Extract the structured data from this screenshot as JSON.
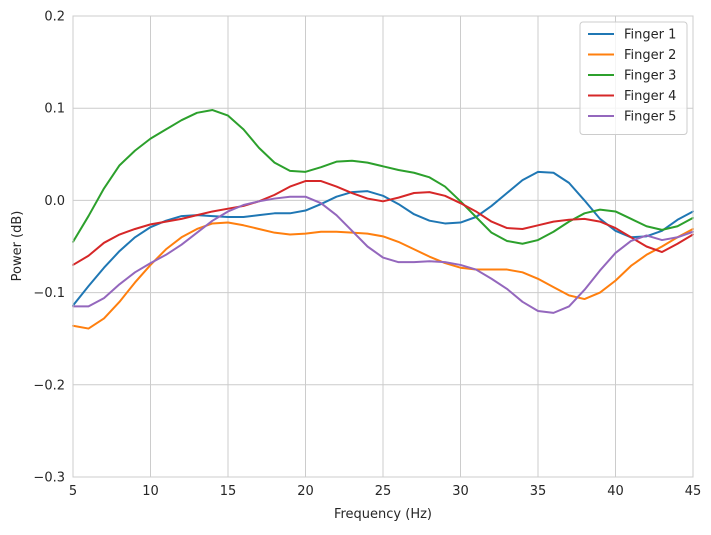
{
  "chart_data": {
    "type": "line",
    "xlabel": "Frequency (Hz)",
    "ylabel": "Power (dB)",
    "xlim": [
      5,
      45
    ],
    "ylim": [
      -0.3,
      0.2
    ],
    "grid": true,
    "legend_position": "top-right",
    "x_ticks": [
      5,
      10,
      15,
      20,
      25,
      30,
      35,
      40,
      45
    ],
    "x_tick_labels": [
      "5",
      "10",
      "15",
      "20",
      "25",
      "30",
      "35",
      "40",
      "45"
    ],
    "y_ticks": [
      -0.3,
      -0.2,
      -0.1,
      0.0,
      0.1,
      0.2
    ],
    "y_tick_labels": [
      "−0.3",
      "−0.2",
      "−0.1",
      "0.0",
      "0.1",
      "0.2"
    ],
    "x": [
      5,
      6,
      7,
      8,
      9,
      10,
      11,
      12,
      13,
      14,
      15,
      16,
      17,
      18,
      19,
      20,
      21,
      22,
      23,
      24,
      25,
      26,
      27,
      28,
      29,
      30,
      31,
      32,
      33,
      34,
      35,
      36,
      37,
      38,
      39,
      40,
      41,
      42,
      43,
      44,
      45
    ],
    "series": [
      {
        "name": "Finger 1",
        "color": "#1f77b4",
        "values": [
          -0.114,
          -0.093,
          -0.073,
          -0.055,
          -0.04,
          -0.029,
          -0.022,
          -0.017,
          -0.016,
          -0.017,
          -0.018,
          -0.018,
          -0.016,
          -0.014,
          -0.014,
          -0.011,
          -0.004,
          0.004,
          0.009,
          0.01,
          0.005,
          -0.004,
          -0.015,
          -0.022,
          -0.025,
          -0.024,
          -0.018,
          -0.006,
          0.008,
          0.022,
          0.031,
          0.03,
          0.019,
          0.0,
          -0.02,
          -0.033,
          -0.04,
          -0.039,
          -0.033,
          -0.021,
          -0.012
        ]
      },
      {
        "name": "Finger 2",
        "color": "#ff7f0e",
        "values": [
          -0.136,
          -0.139,
          -0.128,
          -0.11,
          -0.089,
          -0.07,
          -0.053,
          -0.04,
          -0.031,
          -0.025,
          -0.024,
          -0.027,
          -0.031,
          -0.035,
          -0.037,
          -0.036,
          -0.034,
          -0.034,
          -0.035,
          -0.036,
          -0.039,
          -0.045,
          -0.053,
          -0.061,
          -0.068,
          -0.073,
          -0.075,
          -0.075,
          -0.075,
          -0.078,
          -0.085,
          -0.094,
          -0.103,
          -0.107,
          -0.1,
          -0.087,
          -0.071,
          -0.059,
          -0.05,
          -0.04,
          -0.031
        ]
      },
      {
        "name": "Finger 3",
        "color": "#2ca02c",
        "values": [
          -0.045,
          -0.017,
          0.013,
          0.038,
          0.054,
          0.067,
          0.077,
          0.087,
          0.095,
          0.098,
          0.092,
          0.077,
          0.057,
          0.041,
          0.032,
          0.031,
          0.036,
          0.042,
          0.043,
          0.041,
          0.037,
          0.033,
          0.03,
          0.025,
          0.015,
          -0.001,
          -0.018,
          -0.035,
          -0.044,
          -0.047,
          -0.043,
          -0.034,
          -0.023,
          -0.014,
          -0.01,
          -0.012,
          -0.02,
          -0.028,
          -0.032,
          -0.028,
          -0.019
        ]
      },
      {
        "name": "Finger 4",
        "color": "#d62728",
        "values": [
          -0.07,
          -0.06,
          -0.046,
          -0.037,
          -0.031,
          -0.026,
          -0.023,
          -0.02,
          -0.016,
          -0.012,
          -0.009,
          -0.006,
          -0.001,
          0.006,
          0.015,
          0.021,
          0.021,
          0.015,
          0.008,
          0.002,
          -0.001,
          0.003,
          0.008,
          0.009,
          0.005,
          -0.003,
          -0.012,
          -0.023,
          -0.03,
          -0.031,
          -0.027,
          -0.023,
          -0.021,
          -0.02,
          -0.023,
          -0.03,
          -0.04,
          -0.05,
          -0.056,
          -0.047,
          -0.037
        ]
      },
      {
        "name": "Finger 5",
        "color": "#9467bd",
        "values": [
          -0.115,
          -0.115,
          -0.106,
          -0.091,
          -0.078,
          -0.068,
          -0.059,
          -0.048,
          -0.035,
          -0.022,
          -0.012,
          -0.005,
          -0.001,
          0.002,
          0.004,
          0.004,
          -0.003,
          -0.016,
          -0.033,
          -0.05,
          -0.062,
          -0.067,
          -0.067,
          -0.066,
          -0.067,
          -0.07,
          -0.075,
          -0.085,
          -0.096,
          -0.11,
          -0.12,
          -0.122,
          -0.115,
          -0.097,
          -0.076,
          -0.057,
          -0.044,
          -0.038,
          -0.043,
          -0.04,
          -0.034
        ]
      }
    ]
  }
}
